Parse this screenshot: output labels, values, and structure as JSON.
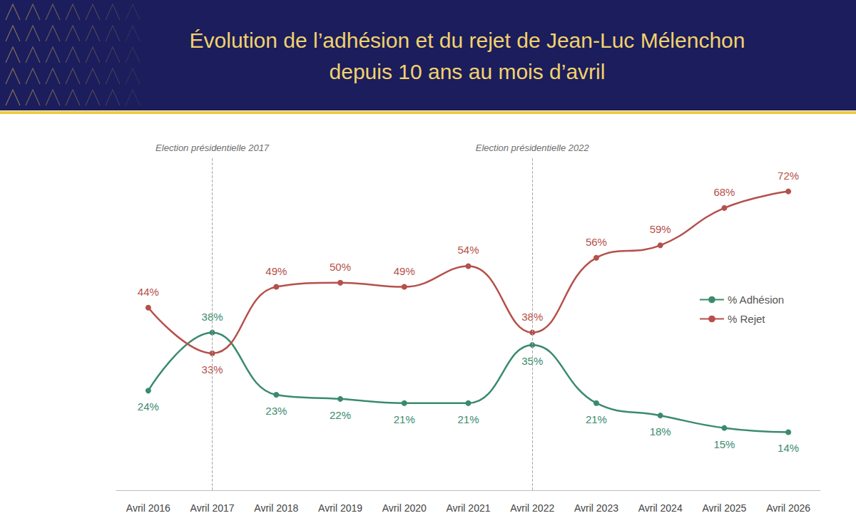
{
  "chart_data": {
    "type": "line",
    "title": "Évolution de l’adhésion et du rejet de Jean-Luc Mélenchon depuis 10 ans au mois d’avril",
    "categories": [
      "Avril 2016",
      "Avril 2017",
      "Avril 2018",
      "Avril 2019",
      "Avril 2020",
      "Avril 2021",
      "Avril 2022",
      "Avril 2023",
      "Avril 2024",
      "Avril 2025",
      "Avril 2026"
    ],
    "series": [
      {
        "name": "% Adhésion",
        "color": "#3a8b6c",
        "values": [
          24,
          38,
          23,
          22,
          21,
          21,
          35,
          21,
          18,
          15,
          14
        ],
        "value_labels": [
          "24%",
          "38%",
          "23%",
          "22%",
          "21%",
          "21%",
          "35%",
          "21%",
          "18%",
          "15%",
          "14%"
        ]
      },
      {
        "name": "% Rejet",
        "color": "#b5504b",
        "values": [
          44,
          33,
          49,
          50,
          49,
          54,
          38,
          56,
          59,
          68,
          72
        ],
        "value_labels": [
          "44%",
          "33%",
          "49%",
          "50%",
          "49%",
          "54%",
          "38%",
          "56%",
          "59%",
          "68%",
          "72%"
        ]
      }
    ],
    "ylim": [
      0,
      80
    ],
    "yticks": [
      0,
      20,
      40,
      60,
      80
    ],
    "tick_labels": "x",
    "grid": false,
    "legend": "right",
    "data_labels": true,
    "marker": "circle",
    "line_style": "solid",
    "annotations": [
      {
        "text": "Election présidentielle 2017",
        "x": "Avril 2017"
      },
      {
        "text": "Election présidentielle 2022",
        "x": "Avril 2022"
      }
    ]
  }
}
